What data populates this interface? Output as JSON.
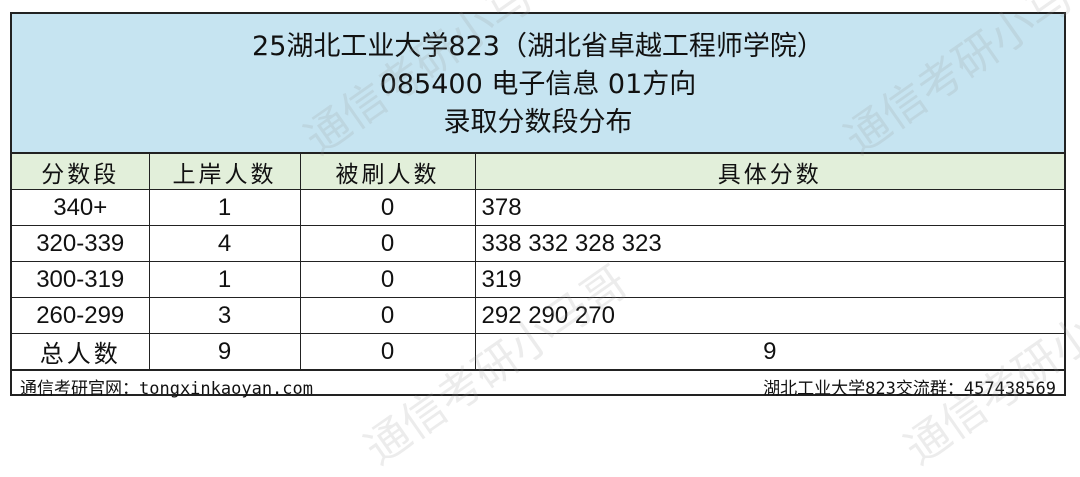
{
  "title": {
    "line1": "25湖北工业大学823（湖北省卓越工程师学院）",
    "line2": "085400 电子信息 01方向",
    "line3": "录取分数段分布"
  },
  "headers": [
    "分数段",
    "上岸人数",
    "被刷人数",
    "具体分数"
  ],
  "rows": [
    {
      "range": "340+",
      "admitted": "1",
      "rejected": "0",
      "scores": "378"
    },
    {
      "range": "320-339",
      "admitted": "4",
      "rejected": "0",
      "scores": "338 332 328 323"
    },
    {
      "range": "300-319",
      "admitted": "1",
      "rejected": "0",
      "scores": "319"
    },
    {
      "range": "260-299",
      "admitted": "3",
      "rejected": "0",
      "scores": "292 290 270"
    }
  ],
  "total": {
    "label": "总人数",
    "admitted": "9",
    "rejected": "0",
    "scores": "9"
  },
  "footer": {
    "left": "通信考研官网：tongxinkaoyan.com",
    "right": "湖北工业大学823交流群：457438569"
  },
  "watermark": "通信考研小马哥"
}
